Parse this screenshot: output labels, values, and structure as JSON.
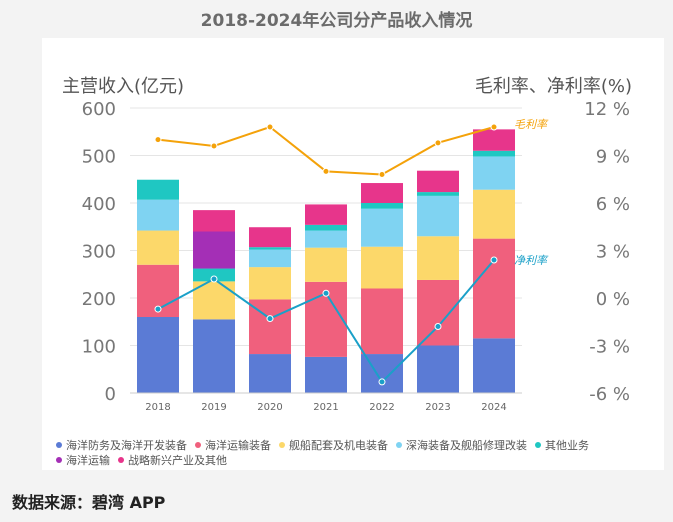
{
  "chart_data": {
    "type": "bar",
    "title": "2018-2024年公司分产品收入情况",
    "ylabel": "主营收入(亿元)",
    "y2label": "毛利率、净利率(%)",
    "categories": [
      "2018",
      "2019",
      "2020",
      "2021",
      "2022",
      "2023",
      "2024"
    ],
    "ylim": [
      0,
      600
    ],
    "yticks": [
      "0",
      "100",
      "200",
      "300",
      "400",
      "500",
      "600"
    ],
    "y2lim": [
      -6,
      12
    ],
    "y2ticks": [
      "-6 %",
      "-3 %",
      "0 %",
      "3 %",
      "6 %",
      "9 %",
      "12 %"
    ],
    "stacked": true,
    "series": [
      {
        "name": "海洋防务及海洋开发装备",
        "color": "#5b7bd5",
        "values": [
          160,
          155,
          82,
          76,
          82,
          100,
          115
        ]
      },
      {
        "name": "海洋运输装备",
        "color": "#f0607d",
        "values": [
          110,
          0,
          115,
          158,
          138,
          138,
          210
        ]
      },
      {
        "name": "舰船配套及机电装备",
        "color": "#fcd86a",
        "values": [
          72,
          80,
          68,
          72,
          88,
          92,
          103
        ]
      },
      {
        "name": "深海装备及舰船修理改装",
        "color": "#7fd3f2",
        "values": [
          65,
          0,
          37,
          36,
          80,
          85,
          70
        ]
      },
      {
        "name": "其他业务",
        "color": "#1fc7c2",
        "values": [
          42,
          27,
          5,
          12,
          12,
          8,
          12
        ]
      },
      {
        "name": "海洋运输",
        "color": "#a42fb6",
        "values": [
          0,
          78,
          0,
          0,
          0,
          0,
          0
        ]
      },
      {
        "name": "战略新兴产业及其他",
        "color": "#e7358b",
        "values": [
          0,
          45,
          42,
          43,
          42,
          45,
          45
        ]
      }
    ],
    "lines": [
      {
        "name": "毛利率",
        "color": "#f4a20a",
        "values": [
          10.0,
          9.6,
          10.8,
          8.0,
          7.8,
          9.8,
          10.8
        ]
      },
      {
        "name": "净利率",
        "color": "#1aa0c8",
        "values": [
          -0.7,
          1.2,
          -1.3,
          0.3,
          -5.3,
          -1.8,
          2.4
        ]
      }
    ]
  },
  "legend_labels": [
    "海洋防务及海洋开发装备",
    "海洋运输装备",
    "舰船配套及机电装备",
    "深海装备及舰船修理改装",
    "其他业务",
    "海洋运输",
    "战略新兴产业及其他"
  ],
  "colors": {
    "axis_text": "#777777",
    "grid": "#e5e5e5"
  },
  "source_text": "数据来源：碧湾 APP"
}
